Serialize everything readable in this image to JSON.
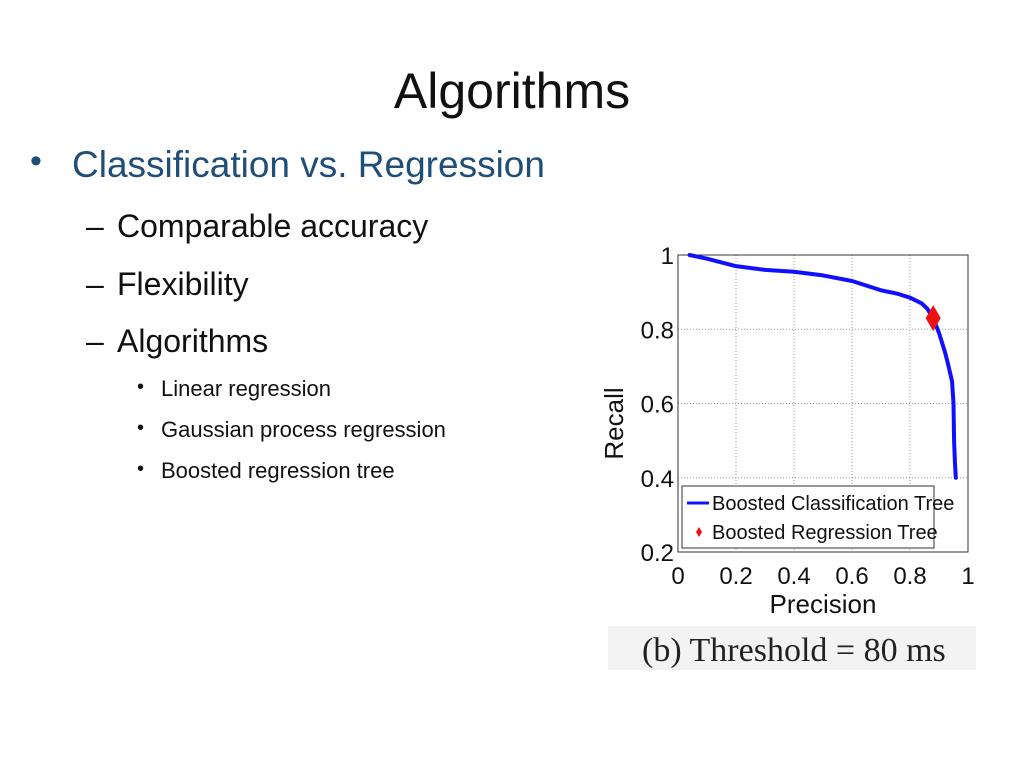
{
  "slide": {
    "title": "Algorithms",
    "bullet_level1": "Classification vs. Regression",
    "bullet_level2": [
      "Comparable accuracy",
      "Flexibility",
      "Algorithms"
    ],
    "bullet_level3": [
      "Linear regression",
      "Gaussian process regression",
      "Boosted regression tree"
    ],
    "bullet_symbol": "•",
    "dash_symbol": "–"
  },
  "chart_data": {
    "type": "line",
    "xlabel": "Precision",
    "ylabel": "Recall",
    "xlim": [
      0,
      1
    ],
    "ylim": [
      0.2,
      1
    ],
    "xticks": [
      "0",
      "0.2",
      "0.4",
      "0.6",
      "0.8",
      "1"
    ],
    "yticks": [
      "0.2",
      "0.4",
      "0.6",
      "0.8",
      "1"
    ],
    "grid": true,
    "legend_position": "lower-left",
    "caption": "(b) Threshold = 80 ms",
    "series": [
      {
        "name": "Boosted Classification Tree",
        "color": "#1010ff",
        "marker": "line",
        "x": [
          0.04,
          0.1,
          0.2,
          0.3,
          0.4,
          0.5,
          0.6,
          0.7,
          0.76,
          0.8,
          0.84,
          0.86,
          0.88,
          0.9,
          0.92,
          0.93,
          0.945,
          0.95,
          0.952,
          0.955,
          0.958
        ],
        "y": [
          1.0,
          0.99,
          0.97,
          0.96,
          0.955,
          0.945,
          0.93,
          0.905,
          0.895,
          0.885,
          0.87,
          0.855,
          0.83,
          0.79,
          0.74,
          0.71,
          0.66,
          0.6,
          0.5,
          0.44,
          0.4
        ]
      },
      {
        "name": "Boosted Regression Tree",
        "color": "#ee1111",
        "marker": "diamond",
        "x": [
          0.88
        ],
        "y": [
          0.83
        ]
      }
    ]
  }
}
